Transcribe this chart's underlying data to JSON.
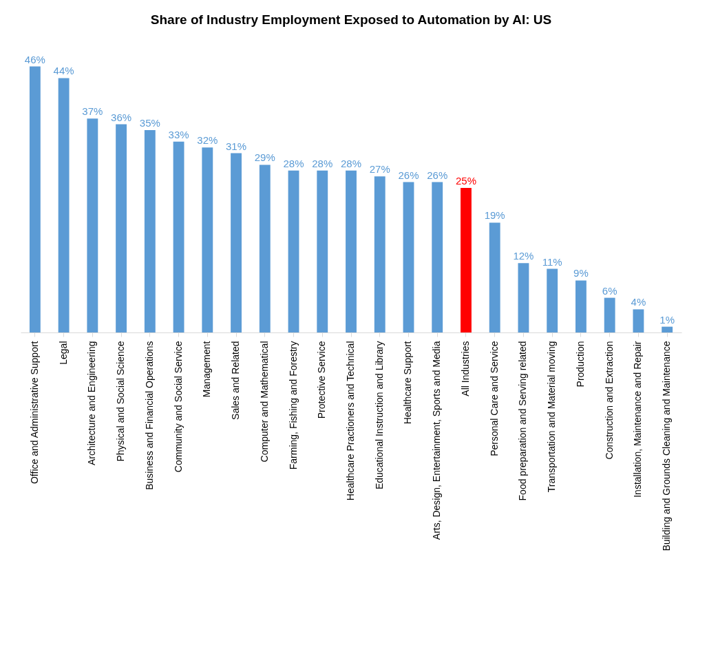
{
  "chart_data": {
    "type": "bar",
    "title": "Share of Industry Employment Exposed to Automation by AI: US",
    "categories": [
      "Office and Administrative Support",
      "Legal",
      "Architecture and Engineering",
      "Physical and Social Science",
      "Business and Financial Operations",
      "Community and Social Service",
      "Management",
      "Sales and Related",
      "Computer and Mathematical",
      "Farming, Fishing and Forestry",
      "Protective Service",
      "Healthcare Practioners and Technical",
      "Educational Instruction and Library",
      "Healthcare Support",
      "Arts, Design, Entertainment, Sports and Media",
      "All Industries",
      "Personal Care and Service",
      "Food preparation and Serving related",
      "Transportation and Material moving",
      "Production",
      "Construction and Extraction",
      "Installation, Maintenance and Repair",
      "Building and Grounds Cleaning and Maintenance"
    ],
    "values": [
      46,
      44,
      37,
      36,
      35,
      33,
      32,
      31,
      29,
      28,
      28,
      28,
      27,
      26,
      26,
      25,
      19,
      12,
      11,
      9,
      6,
      4,
      1
    ],
    "value_labels": [
      "46%",
      "44%",
      "37%",
      "36%",
      "35%",
      "33%",
      "32%",
      "31%",
      "29%",
      "28%",
      "28%",
      "28%",
      "27%",
      "26%",
      "26%",
      "25%",
      "19%",
      "12%",
      "11%",
      "9%",
      "6%",
      "4%",
      "1%"
    ],
    "colors": [
      "#5b9bd5",
      "#5b9bd5",
      "#5b9bd5",
      "#5b9bd5",
      "#5b9bd5",
      "#5b9bd5",
      "#5b9bd5",
      "#5b9bd5",
      "#5b9bd5",
      "#5b9bd5",
      "#5b9bd5",
      "#5b9bd5",
      "#5b9bd5",
      "#5b9bd5",
      "#5b9bd5",
      "#ff0000",
      "#5b9bd5",
      "#5b9bd5",
      "#5b9bd5",
      "#5b9bd5",
      "#5b9bd5",
      "#5b9bd5",
      "#5b9bd5"
    ],
    "tick_labels": "x"
  }
}
